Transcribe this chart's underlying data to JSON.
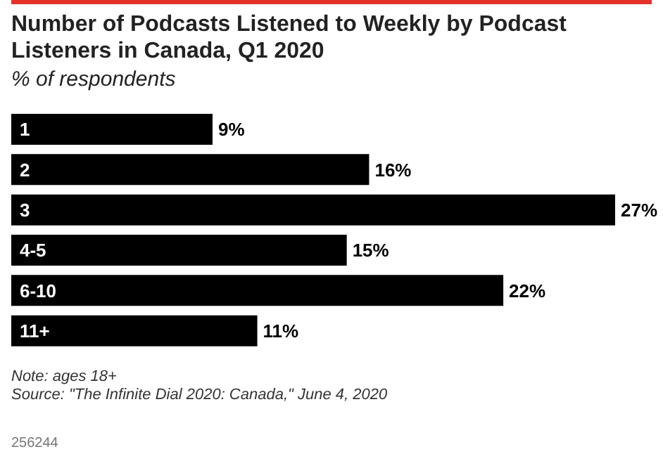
{
  "chart_data": {
    "type": "bar",
    "orientation": "horizontal",
    "title": "Number of Podcasts Listened to Weekly by Podcast Listeners in Canada, Q1 2020",
    "subtitle": "% of respondents",
    "categories": [
      "1",
      "2",
      "3",
      "4-5",
      "6-10",
      "11+"
    ],
    "values": [
      9,
      16,
      27,
      15,
      22,
      11
    ],
    "value_labels": [
      "9%",
      "16%",
      "27%",
      "15%",
      "22%",
      "11%"
    ],
    "color": "#000000",
    "legend": false,
    "grid": false,
    "annotations": [
      "Note: ages 18+",
      "Source: \"The Infinite Dial 2020: Canada,\" June 4, 2020",
      "256244"
    ]
  }
}
